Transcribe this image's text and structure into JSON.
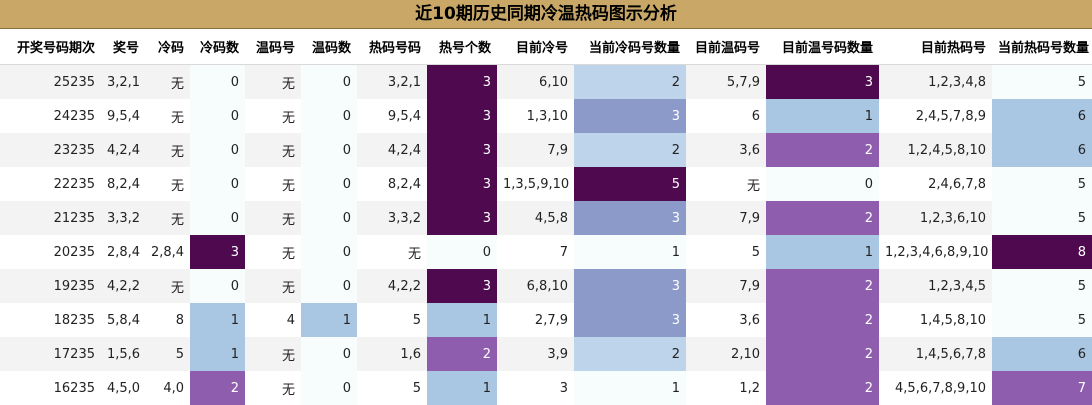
{
  "title": "近10期历史同期冷温热码图示分析",
  "columns": [
    "开奖号码期次",
    "奖号",
    "冷码",
    "冷码数",
    "温码号",
    "温码数",
    "热码号码",
    "热号个数",
    "目前冷号",
    "当前冷码号数量",
    "目前温码号",
    "目前温号码数量",
    "目前热码号",
    "当前热码号数量"
  ],
  "rows": [
    [
      "25235",
      "3,2,1",
      "无",
      "0",
      "无",
      "0",
      "3,2,1",
      "3",
      "6,10",
      "2",
      "5,7,9",
      "3",
      "1,2,3,4,8",
      "5"
    ],
    [
      "24235",
      "9,5,4",
      "无",
      "0",
      "无",
      "0",
      "9,5,4",
      "3",
      "1,3,10",
      "3",
      "6",
      "1",
      "2,4,5,7,8,9",
      "6"
    ],
    [
      "23235",
      "4,2,4",
      "无",
      "0",
      "无",
      "0",
      "4,2,4",
      "3",
      "7,9",
      "2",
      "3,6",
      "2",
      "1,2,4,5,8,10",
      "6"
    ],
    [
      "22235",
      "8,2,4",
      "无",
      "0",
      "无",
      "0",
      "8,2,4",
      "3",
      "1,3,5,9,10",
      "5",
      "无",
      "0",
      "2,4,6,7,8",
      "5"
    ],
    [
      "21235",
      "3,3,2",
      "无",
      "0",
      "无",
      "0",
      "3,3,2",
      "3",
      "4,5,8",
      "3",
      "7,9",
      "2",
      "1,2,3,6,10",
      "5"
    ],
    [
      "20235",
      "2,8,4",
      "2,8,4",
      "3",
      "无",
      "0",
      "无",
      "0",
      "7",
      "1",
      "5",
      "1",
      "1,2,3,4,6,8,9,10",
      "8"
    ],
    [
      "19235",
      "4,2,2",
      "无",
      "0",
      "无",
      "0",
      "4,2,2",
      "3",
      "6,8,10",
      "3",
      "7,9",
      "2",
      "1,2,3,4,5",
      "5"
    ],
    [
      "18235",
      "5,8,4",
      "8",
      "1",
      "4",
      "1",
      "5",
      "1",
      "2,7,9",
      "3",
      "3,6",
      "2",
      "1,4,5,8,10",
      "5"
    ],
    [
      "17235",
      "1,5,6",
      "5",
      "1",
      "无",
      "0",
      "1,6",
      "2",
      "3,9",
      "2",
      "2,10",
      "2",
      "1,4,5,6,7,8",
      "6"
    ],
    [
      "16235",
      "4,5,0",
      "4,0",
      "2",
      "无",
      "0",
      "5",
      "1",
      "3",
      "1",
      "1,2",
      "2",
      "4,5,6,7,8,9,10",
      "7"
    ]
  ],
  "heatmap_colors": {
    "lowest": "#f7fcfd",
    "light_blue": "#a9c7e3",
    "mid_blue": "#8b9ac8",
    "purple": "#8f5dad",
    "dark_purple": "#4f0a4f"
  }
}
